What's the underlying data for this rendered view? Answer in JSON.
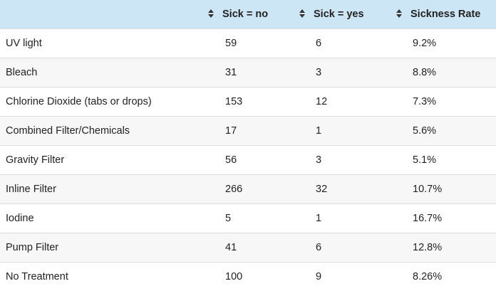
{
  "table": {
    "columns": [
      {
        "label": "",
        "sortable": false
      },
      {
        "label": "Sick = no",
        "sortable": true,
        "icon": "sort-icon"
      },
      {
        "label": "Sick = yes",
        "sortable": true,
        "icon": "sort-icon"
      },
      {
        "label": "Sickness Rate",
        "sortable": true,
        "icon": "sort-icon"
      }
    ],
    "header_bg": "#cde6f5",
    "rows": [
      {
        "treatment": "UV light",
        "sick_no": "59",
        "sick_yes": "6",
        "rate": "9.2%"
      },
      {
        "treatment": "Bleach",
        "sick_no": "31",
        "sick_yes": "3",
        "rate": "8.8%"
      },
      {
        "treatment": "Chlorine Dioxide (tabs or drops)",
        "sick_no": "153",
        "sick_yes": "12",
        "rate": "7.3%"
      },
      {
        "treatment": "Combined Filter/Chemicals",
        "sick_no": "17",
        "sick_yes": "1",
        "rate": "5.6%"
      },
      {
        "treatment": "Gravity Filter",
        "sick_no": "56",
        "sick_yes": "3",
        "rate": "5.1%"
      },
      {
        "treatment": "Inline Filter",
        "sick_no": "266",
        "sick_yes": "32",
        "rate": "10.7%"
      },
      {
        "treatment": "Iodine",
        "sick_no": "5",
        "sick_yes": "1",
        "rate": "16.7%"
      },
      {
        "treatment": "Pump Filter",
        "sick_no": "41",
        "sick_yes": "6",
        "rate": "12.8%"
      },
      {
        "treatment": "No Treatment",
        "sick_no": "100",
        "sick_yes": "9",
        "rate": "8.26%"
      }
    ]
  }
}
